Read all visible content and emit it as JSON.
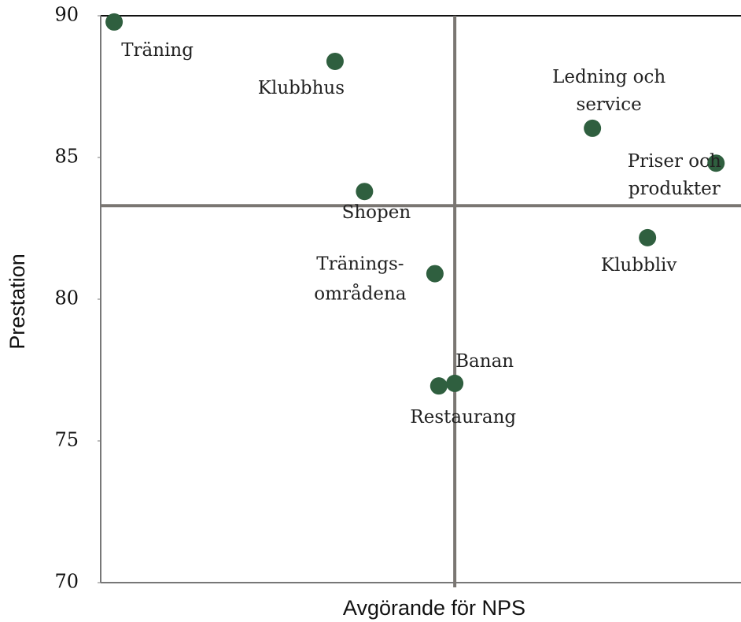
{
  "chart_data": {
    "type": "scatter",
    "ylabel": "Prestation",
    "xlabel": "Avgörande för NPS",
    "ylim": [
      70,
      90
    ],
    "yticks": [
      70,
      75,
      80,
      85,
      90
    ],
    "xlim": [
      0,
      100
    ],
    "color": "#2f5f3f",
    "reference_lines": {
      "x": 55.3,
      "y": 83.3
    },
    "labels": [
      [
        "Träning"
      ],
      [
        "Klubbhus"
      ],
      [
        "Ledning och",
        "service"
      ],
      [
        "Priser och",
        "produkter"
      ],
      [
        "Shopen"
      ],
      [
        "Klubbliv"
      ],
      [
        "Tränings-",
        "områdena"
      ],
      [
        "Banan"
      ],
      [
        "Restaurang"
      ]
    ],
    "x": [
      2.1,
      36.6,
      76.8,
      96.1,
      41.2,
      85.4,
      52.2,
      55.3,
      52.8
    ],
    "values": [
      89.78,
      88.39,
      86.03,
      84.8,
      83.8,
      82.17,
      80.9,
      77.03,
      76.94
    ]
  }
}
